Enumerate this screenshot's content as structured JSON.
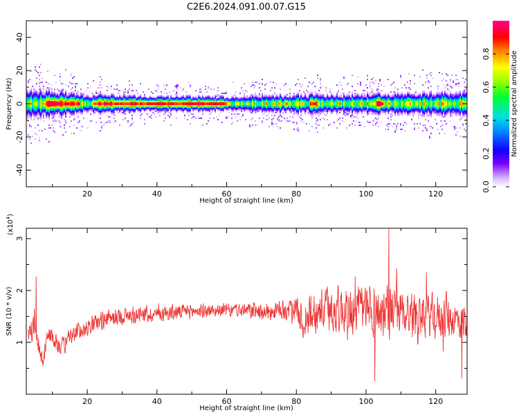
{
  "title": "C2E6.2024.091.00.07.G15",
  "chart_data": [
    {
      "type": "heatmap",
      "xlabel": "Height of straight line (km)",
      "ylabel": "Frequency (Hz)",
      "xlim": [
        2.5,
        129
      ],
      "ylim": [
        -50,
        50
      ],
      "xticks": [
        20,
        40,
        60,
        80,
        100,
        120
      ],
      "yticks": [
        -40,
        -20,
        0,
        20,
        40
      ],
      "band_center_hz": 0,
      "band_halfwidth_hz": [
        [
          3,
          6
        ],
        [
          20,
          4
        ],
        [
          40,
          3
        ],
        [
          60,
          3
        ],
        [
          80,
          4
        ],
        [
          100,
          4
        ],
        [
          128,
          5
        ]
      ],
      "strong_peak_segments_km": [
        [
          8,
          18
        ],
        [
          22,
          60
        ],
        [
          84,
          86
        ],
        [
          103,
          105
        ]
      ],
      "colorbar": {
        "label": "Normalized spectral amplitude",
        "ticks": [
          0.0,
          0.2,
          0.4,
          0.6,
          0.8
        ],
        "range": [
          0,
          1
        ],
        "colormap": "rainbow (purple-blue-cyan-green-yellow-red-magenta)"
      }
    },
    {
      "type": "line",
      "xlabel": "Height of straight line (km)",
      "ylabel": "SNR (10 * v/v)",
      "multiplier_label": "(x10",
      "multiplier_exp": "4",
      "multiplier_close": ")",
      "xlim": [
        2.5,
        129
      ],
      "ylim": [
        0,
        3.2
      ],
      "xticks": [
        20,
        40,
        60,
        80,
        100,
        120
      ],
      "yticks": [
        1,
        2,
        3
      ],
      "line_color": "#ee3333",
      "trend_x": [
        3,
        5,
        6,
        7,
        9,
        11,
        13,
        15,
        20,
        25,
        30,
        40,
        50,
        60,
        70,
        75,
        80,
        82,
        85,
        90,
        95,
        100,
        105,
        110,
        115,
        120,
        125,
        128
      ],
      "trend_y": [
        1.1,
        1.35,
        1.0,
        0.6,
        1.2,
        1.0,
        0.9,
        1.1,
        1.3,
        1.45,
        1.5,
        1.55,
        1.6,
        1.62,
        1.6,
        1.6,
        1.65,
        1.4,
        1.6,
        1.65,
        1.6,
        1.6,
        1.6,
        1.6,
        1.55,
        1.5,
        1.45,
        1.4
      ],
      "spread_x": [
        3,
        20,
        40,
        60,
        80,
        82,
        90,
        100,
        110,
        120,
        128
      ],
      "spread_y": [
        0.25,
        0.2,
        0.18,
        0.15,
        0.25,
        0.45,
        0.55,
        0.6,
        0.55,
        0.5,
        0.45
      ],
      "annotated_peaks": [
        [
          5.3,
          2.27
        ],
        [
          106.5,
          3.2
        ],
        [
          102.5,
          0.25
        ],
        [
          127.5,
          0.3
        ]
      ]
    }
  ]
}
